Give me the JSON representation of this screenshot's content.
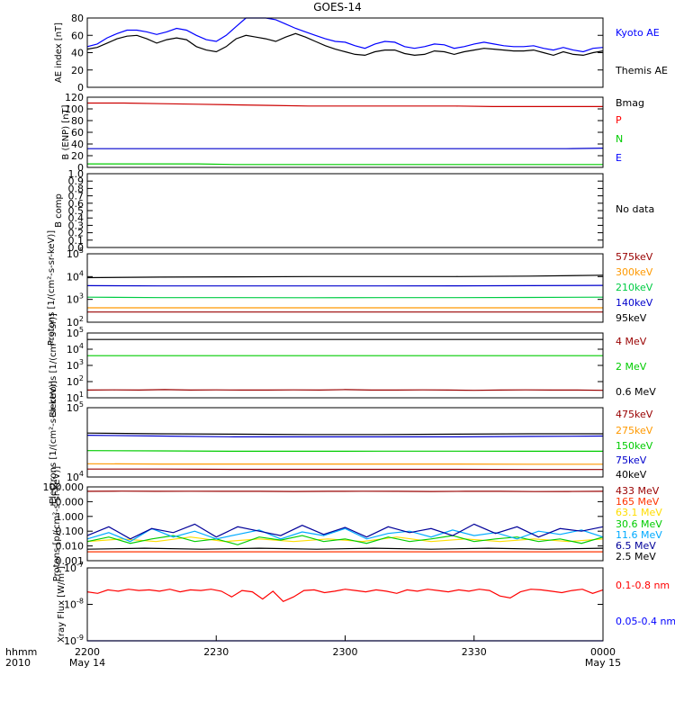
{
  "title": "GOES-14",
  "time_axis": {
    "ticks": [
      "2200",
      "2230",
      "2300",
      "2330",
      "0000"
    ],
    "start_date": "May 14",
    "end_date": "May 15",
    "corner_label_1": "hhmm",
    "corner_label_2": "2010"
  },
  "chart_data": [
    {
      "type": "line",
      "ylabel": "AE index [nT]",
      "yscale": "linear",
      "ylim": [
        0,
        80
      ],
      "yticks": [
        "0",
        "20",
        "40",
        "60",
        "80"
      ],
      "legend_position": "right",
      "series": [
        {
          "name": "Kyoto AE",
          "color": "#0000ff",
          "values": [
            47,
            50,
            57,
            62,
            66,
            66,
            64,
            61,
            64,
            68,
            66,
            60,
            55,
            53,
            60,
            70,
            80,
            84,
            82,
            78,
            73,
            68,
            64,
            60,
            56,
            53,
            52,
            48,
            45,
            50,
            53,
            52,
            47,
            45,
            47,
            50,
            49,
            45,
            47,
            50,
            52,
            50,
            48,
            47,
            47,
            48,
            45,
            43,
            46,
            43,
            41,
            45,
            46
          ]
        },
        {
          "name": "Themis AE",
          "color": "#000000",
          "values": [
            44,
            46,
            51,
            56,
            59,
            60,
            56,
            51,
            55,
            57,
            55,
            47,
            43,
            41,
            47,
            56,
            60,
            58,
            56,
            53,
            58,
            62,
            58,
            53,
            48,
            44,
            41,
            38,
            37,
            41,
            43,
            43,
            39,
            37,
            38,
            42,
            41,
            38,
            41,
            43,
            45,
            44,
            43,
            42,
            42,
            43,
            40,
            37,
            41,
            38,
            37,
            40,
            42
          ]
        }
      ]
    },
    {
      "type": "line",
      "ylabel": "B (ENP) [nT]",
      "yscale": "linear",
      "ylim": [
        0,
        120
      ],
      "yticks": [
        "0",
        "20",
        "40",
        "60",
        "80",
        "100",
        "120"
      ],
      "legend_position": "right",
      "legend": [
        {
          "label": "Bmag",
          "color": "#000000"
        },
        {
          "label": "P",
          "color": "#ff0000"
        },
        {
          "label": "N",
          "color": "#00cc00"
        },
        {
          "label": "E",
          "color": "#0000ff"
        }
      ],
      "series": [
        {
          "name": "P",
          "color": "#cc0000",
          "values": [
            110,
            110,
            109,
            108,
            107,
            106,
            105,
            105,
            105,
            105,
            105,
            104,
            104,
            104,
            104
          ]
        },
        {
          "name": "E",
          "color": "#0000cc",
          "values": [
            32,
            32,
            32,
            32,
            32,
            32,
            32,
            32,
            32,
            32,
            32,
            32,
            32,
            32,
            33
          ]
        },
        {
          "name": "N",
          "color": "#00cc00",
          "values": [
            6,
            6,
            6,
            6,
            5,
            5,
            5,
            5,
            5,
            5,
            5,
            5,
            5,
            5,
            5
          ]
        }
      ]
    },
    {
      "type": "line",
      "ylabel": "B comp",
      "yscale": "linear",
      "ylim": [
        0,
        1
      ],
      "yticks": [
        "0.0",
        "0.1",
        "0.2",
        "0.3",
        "0.4",
        "0.5",
        "0.6",
        "0.7",
        "0.8",
        "0.9",
        "1.0"
      ],
      "legend_position": "right",
      "legend": [
        {
          "label": "No data",
          "color": "#000000"
        }
      ],
      "series": []
    },
    {
      "type": "line",
      "ylabel": "Protons [1/(cm²-s-sr-keV)]",
      "yscale": "log",
      "ylim": [
        100,
        100000
      ],
      "yticks": [
        {
          "value": 100,
          "base": "10",
          "exp": "2"
        },
        {
          "value": 1000,
          "base": "10",
          "exp": "3"
        },
        {
          "value": 10000,
          "base": "10",
          "exp": "4"
        },
        {
          "value": 100000,
          "base": "10",
          "exp": "5"
        }
      ],
      "legend_position": "right",
      "series": [
        {
          "name": "575keV",
          "color": "#990000",
          "values": [
            280,
            280,
            280,
            280,
            280,
            280,
            280,
            280
          ]
        },
        {
          "name": "300keV",
          "color": "#ff9900",
          "values": [
            430,
            430,
            430,
            430,
            430,
            430,
            430,
            430
          ]
        },
        {
          "name": "210keV",
          "color": "#00cc44",
          "values": [
            1250,
            1200,
            1200,
            1180,
            1200,
            1200,
            1220,
            1250
          ]
        },
        {
          "name": "140keV",
          "color": "#0000cc",
          "values": [
            4000,
            3900,
            3900,
            3900,
            3900,
            3950,
            4000,
            4100
          ]
        },
        {
          "name": "95keV",
          "color": "#000000",
          "values": [
            9000,
            9500,
            9800,
            10000,
            10000,
            10000,
            10500,
            11500
          ]
        }
      ]
    },
    {
      "type": "line",
      "ylabel": "Electrons [1/(cm²-s-sr)]",
      "yscale": "log",
      "ylim": [
        10,
        100000
      ],
      "yticks": [
        {
          "value": 10,
          "base": "10",
          "exp": "1"
        },
        {
          "value": 100,
          "base": "10",
          "exp": "2"
        },
        {
          "value": 1000,
          "base": "10",
          "exp": "3"
        },
        {
          "value": 10000,
          "base": "10",
          "exp": "4"
        },
        {
          "value": 100000,
          "base": "10",
          "exp": "5"
        }
      ],
      "legend_position": "right",
      "series": [
        {
          "name": "4 MeV",
          "color": "#990000",
          "values": [
            30,
            31,
            30,
            32,
            30,
            31,
            30,
            30,
            31,
            30,
            32,
            30,
            30,
            31,
            30,
            29,
            30,
            31,
            30,
            30,
            29
          ]
        },
        {
          "name": "2 MeV",
          "color": "#00cc00",
          "values": [
            4000,
            4000,
            4000,
            4000,
            4000,
            4000,
            4000,
            4000
          ]
        },
        {
          "name": "0.6 MeV",
          "color": "#000000",
          "values": [
            40000,
            40000,
            40000,
            40000,
            40000,
            40000,
            40000,
            40000
          ]
        }
      ]
    },
    {
      "type": "line",
      "ylabel": "Electrons [1/(cm²-s-sr-keV)]",
      "yscale": "log",
      "ylim": [
        10000,
        100000
      ],
      "yticks": [
        {
          "value": 10000,
          "base": "10",
          "exp": "4"
        },
        {
          "value": 100000,
          "base": "10",
          "exp": "5"
        }
      ],
      "legend_position": "right",
      "series": [
        {
          "name": "475keV",
          "color": "#990000",
          "values": [
            13000,
            13000,
            12900,
            12900,
            12900,
            12900,
            12800,
            12800
          ]
        },
        {
          "name": "275keV",
          "color": "#ff9900",
          "values": [
            15500,
            15400,
            15400,
            15400,
            15400,
            15400,
            15300,
            15300
          ]
        },
        {
          "name": "150keV",
          "color": "#00cc00",
          "values": [
            24000,
            23800,
            23500,
            23500,
            23600,
            23600,
            23500,
            23500
          ]
        },
        {
          "name": "75keV",
          "color": "#0000cc",
          "values": [
            40000,
            39000,
            38000,
            38000,
            38000,
            38000,
            38500,
            39000
          ]
        },
        {
          "name": "40keV",
          "color": "#000000",
          "values": [
            43000,
            42000,
            41500,
            41000,
            41000,
            41500,
            42000,
            42000
          ]
        }
      ]
    },
    {
      "type": "line",
      "ylabel": "Protons [p/(cm²-s-sr-keV)]",
      "yscale": "log",
      "ylim": [
        0.001,
        100
      ],
      "yticks": [
        "0.001",
        "0.010",
        "0.100",
        "1.000",
        "10.000",
        "100.000"
      ],
      "legend_position": "right",
      "series": [
        {
          "name": "433 MeV",
          "color": "#990000",
          "values": [
            50,
            52,
            50,
            51,
            50,
            50,
            49,
            50,
            51,
            50,
            49,
            50,
            50,
            48,
            49,
            50
          ]
        },
        {
          "name": "165 MeV",
          "color": "#ff3300",
          "values": [
            0.004,
            0.004,
            0.004,
            0.004,
            0.004,
            0.004,
            0.004,
            0.004
          ]
        },
        {
          "name": "63.1 MeV",
          "color": "#ffdd00",
          "values": [
            0.02,
            0.03,
            0.02,
            0.04,
            0.02,
            0.03,
            0.02,
            0.03,
            0.02,
            0.04,
            0.02,
            0.03,
            0.02,
            0.03,
            0.02,
            0.03
          ]
        },
        {
          "name": "30.6 MeV",
          "color": "#00cc00",
          "values": [
            0.02,
            0.04,
            0.015,
            0.03,
            0.05,
            0.02,
            0.03,
            0.012,
            0.04,
            0.025,
            0.05,
            0.02,
            0.03,
            0.015,
            0.04,
            0.02,
            0.03,
            0.05,
            0.02,
            0.03,
            0.04,
            0.02,
            0.03,
            0.015,
            0.04
          ]
        },
        {
          "name": "11.6 MeV",
          "color": "#00aaff",
          "values": [
            0.03,
            0.08,
            0.02,
            0.15,
            0.04,
            0.1,
            0.03,
            0.06,
            0.12,
            0.03,
            0.09,
            0.05,
            0.15,
            0.03,
            0.07,
            0.1,
            0.04,
            0.12,
            0.05,
            0.08,
            0.03,
            0.1,
            0.06,
            0.12,
            0.04
          ]
        },
        {
          "name": "6.5 MeV",
          "color": "#000099",
          "values": [
            0.05,
            0.2,
            0.03,
            0.15,
            0.08,
            0.3,
            0.04,
            0.2,
            0.1,
            0.05,
            0.25,
            0.06,
            0.18,
            0.04,
            0.2,
            0.08,
            0.15,
            0.05,
            0.3,
            0.07,
            0.2,
            0.04,
            0.15,
            0.1,
            0.2
          ]
        },
        {
          "name": "2.5 MeV",
          "color": "#000000",
          "values": [
            0.006,
            0.007,
            0.006,
            0.007,
            0.006,
            0.007,
            0.006,
            0.007,
            0.006,
            0.007
          ]
        }
      ]
    },
    {
      "type": "line",
      "ylabel": "Xray Flux [W/m²]",
      "yscale": "log",
      "ylim": [
        1e-09,
        1e-07
      ],
      "yticks": [
        {
          "value": 1e-09,
          "base": "10",
          "exp": "-9"
        },
        {
          "value": 1e-08,
          "base": "10",
          "exp": "-8"
        },
        {
          "value": 1e-07,
          "base": "10",
          "exp": "-7"
        }
      ],
      "legend_position": "right",
      "series": [
        {
          "name": "0.1-0.8 nm",
          "color": "#ff0000",
          "values": [
            2.2e-08,
            2e-08,
            2.5e-08,
            2.3e-08,
            2.6e-08,
            2.4e-08,
            2.5e-08,
            2.3e-08,
            2.6e-08,
            2.2e-08,
            2.5e-08,
            2.4e-08,
            2.6e-08,
            2.3e-08,
            1.6e-08,
            2.4e-08,
            2.2e-08,
            1.4e-08,
            2.3e-08,
            1.2e-08,
            1.6e-08,
            2.4e-08,
            2.5e-08,
            2.1e-08,
            2.3e-08,
            2.6e-08,
            2.4e-08,
            2.2e-08,
            2.5e-08,
            2.3e-08,
            2e-08,
            2.5e-08,
            2.3e-08,
            2.6e-08,
            2.4e-08,
            2.2e-08,
            2.5e-08,
            2.3e-08,
            2.6e-08,
            2.4e-08,
            1.7e-08,
            1.5e-08,
            2.2e-08,
            2.6e-08,
            2.5e-08,
            2.3e-08,
            2.1e-08,
            2.4e-08,
            2.6e-08,
            2e-08,
            2.5e-08
          ]
        },
        {
          "name": "0.05-0.4 nm",
          "color": "#0000ff",
          "values": [
            1e-09,
            1e-09,
            1e-09,
            1e-09,
            1e-09,
            1e-09,
            1e-09,
            1e-09,
            1e-09,
            1e-09,
            1e-09,
            1e-09,
            1e-09,
            1e-09,
            1e-09,
            1e-09,
            1e-09,
            1e-09,
            1e-09,
            1e-09,
            1e-09,
            1e-09,
            1e-09,
            1e-09,
            1e-09,
            1e-09,
            1e-09,
            1e-09,
            1e-09,
            1e-09,
            1e-09,
            1e-09,
            1e-09,
            1e-09,
            1e-09,
            1e-09,
            1e-09,
            1e-09,
            1e-09,
            1e-09,
            1e-09,
            1e-09,
            1e-09,
            1e-09,
            1e-09,
            1e-09,
            1e-09,
            1e-09,
            1e-09,
            1e-09,
            1e-09,
            1e-09,
            1e-09,
            1e-09,
            1e-09,
            1e-09,
            1e-09,
            1e-09,
            1e-09,
            1e-09
          ]
        }
      ]
    }
  ]
}
